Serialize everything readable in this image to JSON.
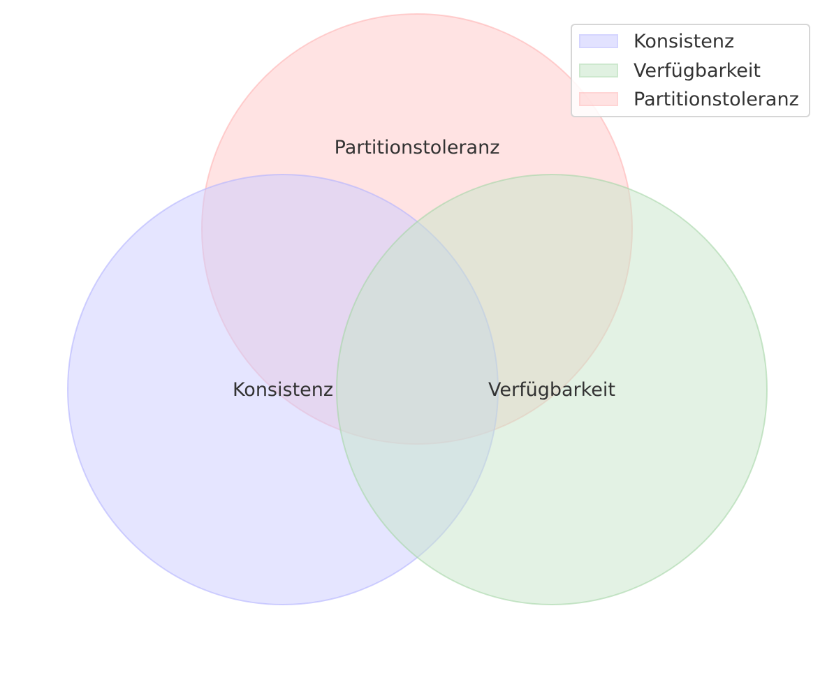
{
  "diagram": {
    "type": "venn",
    "sets": [
      {
        "id": "consistency",
        "label": "Konsistenz",
        "fill": "#ccccff",
        "stroke": "#b3b3ff"
      },
      {
        "id": "availability",
        "label": "Verfügbarkeit",
        "fill": "#c8e6c9",
        "stroke": "#a5d6a7"
      },
      {
        "id": "partition",
        "label": "Partitionstoleranz",
        "fill": "#ffcccc",
        "stroke": "#ffb3b3"
      }
    ]
  },
  "legend": {
    "items": [
      {
        "label": "Konsistenz",
        "fill": "#ccccff",
        "stroke": "#b3b3ff"
      },
      {
        "label": "Verfügbarkeit",
        "fill": "#c8e6c9",
        "stroke": "#a5d6a7"
      },
      {
        "label": "Partitionstoleranz",
        "fill": "#ffcccc",
        "stroke": "#ffb3b3"
      }
    ]
  }
}
